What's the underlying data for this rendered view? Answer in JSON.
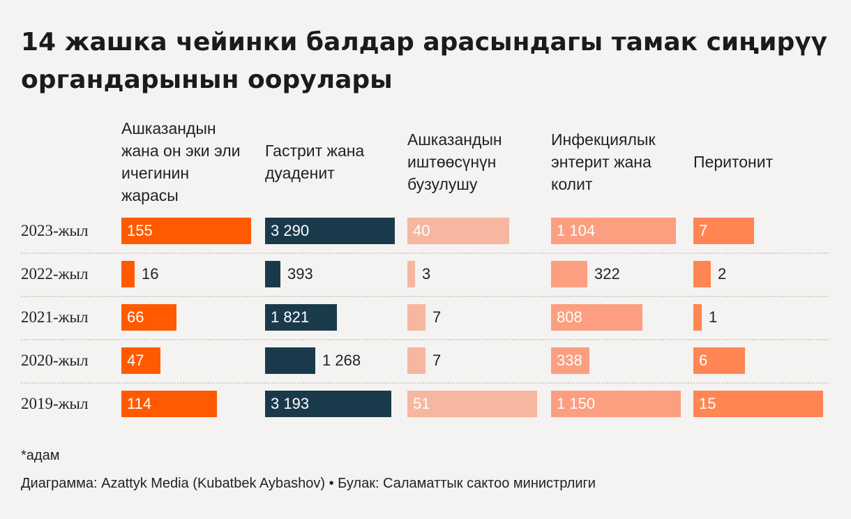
{
  "header": {
    "title": "14 жашка чейинки балдар арасындагы тамак сиңирүү органдарынын оорулары"
  },
  "chart_data": {
    "type": "bar",
    "title": "14 жашка чейинки балдар арасындагы тамак сиңирүү органдарынын оорулары",
    "categories": [
      "2023-жыл",
      "2022-жыл",
      "2021-жыл",
      "2020-жыл",
      "2019-жыл"
    ],
    "series": [
      {
        "name": "Ашказандын жана он эки эли ичегинин жарасы",
        "values": [
          155,
          16,
          66,
          47,
          114
        ],
        "labels": [
          "155",
          "16",
          "66",
          "47",
          "114"
        ],
        "color": "#ff5a00"
      },
      {
        "name": "Гастрит жана дуаденит",
        "values": [
          3290,
          393,
          1821,
          1268,
          3193
        ],
        "labels": [
          "3 290",
          "393",
          "1 821",
          "1 268",
          "3 193"
        ],
        "color": "#1a3a4c"
      },
      {
        "name": "Ашказандын иштөөсүнүн бузулушу",
        "values": [
          40,
          3,
          7,
          7,
          51
        ],
        "labels": [
          "40",
          "3",
          "7",
          "7",
          "51"
        ],
        "color": "#f7b6a0"
      },
      {
        "name": "Инфекциялык энтерит жана колит",
        "values": [
          1104,
          322,
          808,
          338,
          1150
        ],
        "labels": [
          "1 104",
          "322",
          "808",
          "338",
          "1 150"
        ],
        "color": "#fc9e80"
      },
      {
        "name": "Перитонит",
        "values": [
          7,
          2,
          1,
          6,
          15
        ],
        "labels": [
          "7",
          "2",
          "1",
          "6",
          "15"
        ],
        "color": "#ff8552"
      }
    ],
    "xlabel": "",
    "ylabel": "",
    "note": "*адам",
    "source": "Диаграмма: Azattyk Media (Kubatbek Aybashov) • Булак: Саламаттык сактоо министрлиги"
  }
}
